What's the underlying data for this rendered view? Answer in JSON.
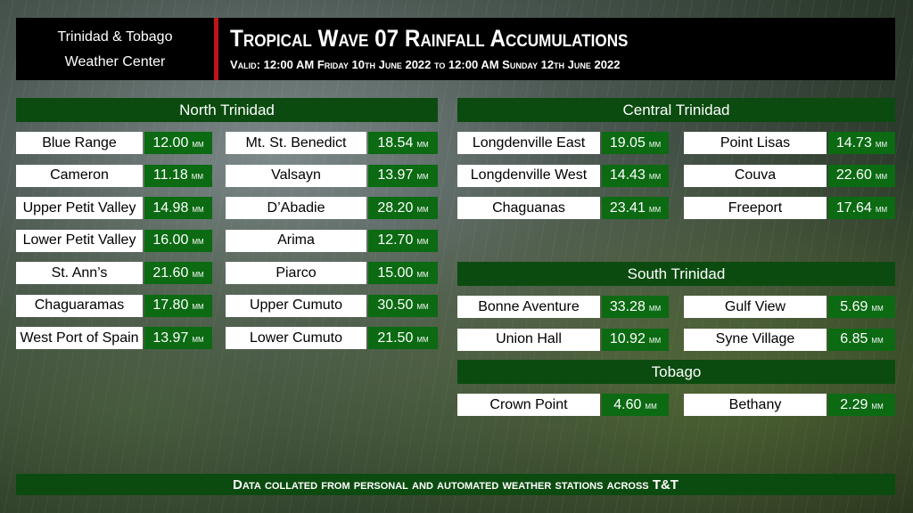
{
  "header": {
    "org": [
      "Trinidad & Tobago",
      "Weather Center"
    ],
    "title": "Tropical Wave 07 Rainfall Accumulations",
    "subtitle": "Valid: 12:00 AM Friday 10th June 2022 to 12:00 AM Sunday 12th June 2022"
  },
  "unit": "mm",
  "sections": [
    {
      "title": "North Trinidad",
      "columns": [
        [
          {
            "name": "Blue Range",
            "value": "12.00"
          },
          {
            "name": "Cameron",
            "value": "11.18"
          },
          {
            "name": "Upper Petit Valley",
            "value": "14.98"
          },
          {
            "name": "Lower Petit Valley",
            "value": "16.00"
          },
          {
            "name": "St. Ann’s",
            "value": "21.60"
          },
          {
            "name": "Chaguaramas",
            "value": "17.80"
          },
          {
            "name": "West Port of Spain",
            "value": "13.97"
          }
        ],
        [
          {
            "name": "Mt. St. Benedict",
            "value": "18.54"
          },
          {
            "name": "Valsayn",
            "value": "13.97"
          },
          {
            "name": "D’Abadie",
            "value": "28.20"
          },
          {
            "name": "Arima",
            "value": "12.70"
          },
          {
            "name": "Piarco",
            "value": "15.00"
          },
          {
            "name": "Upper Cumuto",
            "value": "30.50"
          },
          {
            "name": "Lower Cumuto",
            "value": "21.50"
          }
        ]
      ]
    },
    {
      "title": "Central Trinidad",
      "columns": [
        [
          {
            "name": "Longdenville East",
            "value": "19.05"
          },
          {
            "name": "Longdenville West",
            "value": "14.43"
          },
          {
            "name": "Chaguanas",
            "value": "23.41"
          }
        ],
        [
          {
            "name": "Point Lisas",
            "value": "14.73"
          },
          {
            "name": "Couva",
            "value": "22.60"
          },
          {
            "name": "Freeport",
            "value": "17.64"
          }
        ]
      ]
    },
    {
      "title": "South Trinidad",
      "columns": [
        [
          {
            "name": "Bonne Aventure",
            "value": "33.28"
          },
          {
            "name": "Union Hall",
            "value": "10.92"
          }
        ],
        [
          {
            "name": "Gulf View",
            "value": "5.69"
          },
          {
            "name": "Syne Village",
            "value": "6.85"
          }
        ]
      ]
    },
    {
      "title": "Tobago",
      "columns": [
        [
          {
            "name": "Crown Point",
            "value": "4.60"
          }
        ],
        [
          {
            "name": "Bethany",
            "value": "2.29"
          }
        ]
      ]
    }
  ],
  "footer": "Data collated from personal and automated weather stations across T&T"
}
